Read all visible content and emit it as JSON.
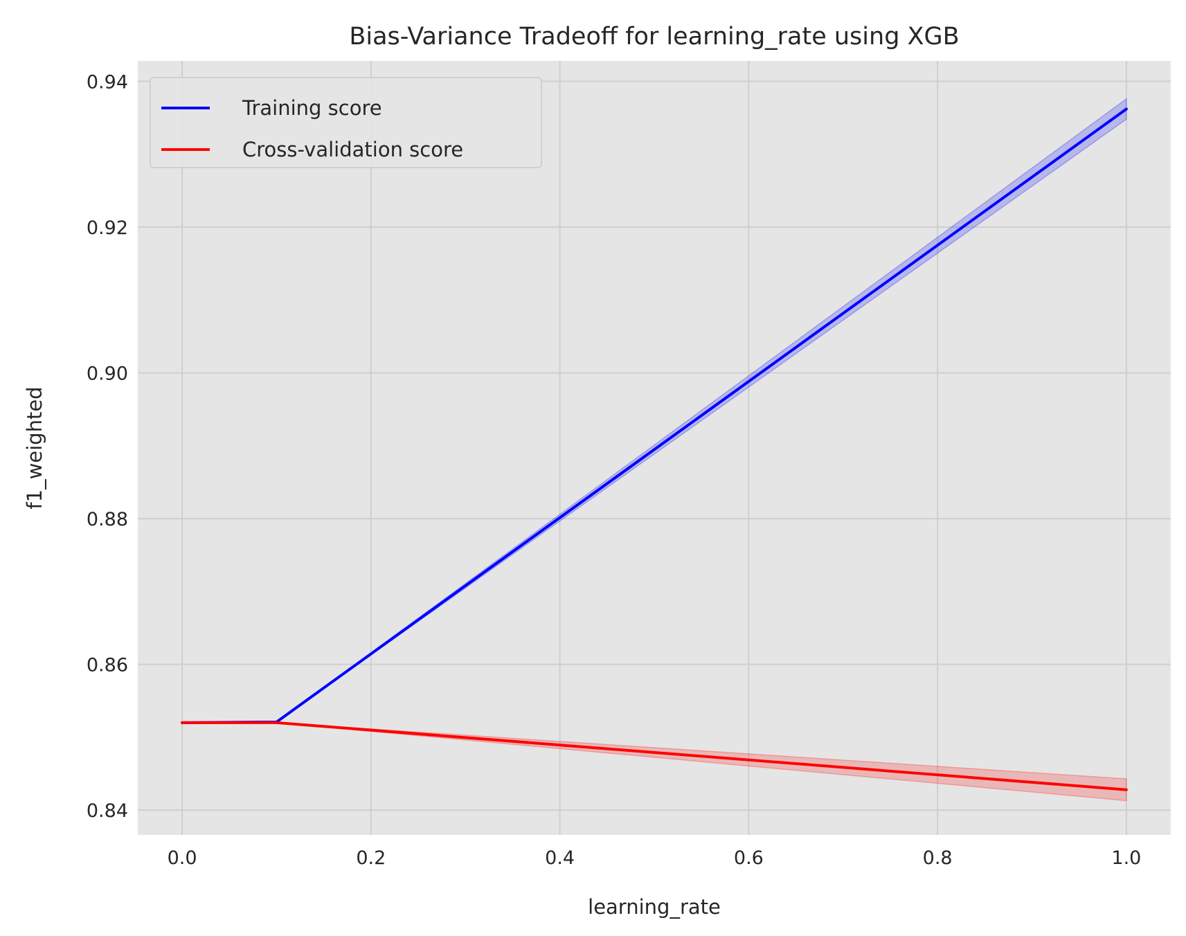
{
  "chart_data": {
    "type": "line",
    "title": "Bias-Variance Tradeoff for learning_rate using XGB",
    "xlabel": "learning_rate",
    "ylabel": "f1_weighted",
    "xlim": [
      -0.047,
      1.047
    ],
    "ylim": [
      0.8366,
      0.9428
    ],
    "xticks": [
      0.0,
      0.2,
      0.4,
      0.6,
      0.8,
      1.0
    ],
    "xtick_labels": [
      "0.0",
      "0.2",
      "0.4",
      "0.6",
      "0.8",
      "1.0"
    ],
    "yticks": [
      0.84,
      0.86,
      0.88,
      0.9,
      0.92,
      0.94
    ],
    "ytick_labels": [
      "0.84",
      "0.86",
      "0.88",
      "0.90",
      "0.92",
      "0.94"
    ],
    "grid": true,
    "legend_position": "top-left",
    "x": [
      0.0,
      0.1,
      1.0
    ],
    "series": [
      {
        "name": "Training score",
        "color": "#0000ff",
        "values": [
          0.852,
          0.8521,
          0.9362
        ],
        "band_lower": [
          0.852,
          0.8521,
          0.9348
        ],
        "band_upper": [
          0.852,
          0.8521,
          0.9376
        ]
      },
      {
        "name": "Cross-validation score",
        "color": "#ff0000",
        "values": [
          0.852,
          0.852,
          0.8428
        ],
        "band_lower": [
          0.852,
          0.852,
          0.8413
        ],
        "band_upper": [
          0.852,
          0.852,
          0.8443
        ]
      }
    ]
  },
  "colors": {
    "plot_background": "#e5e5e5",
    "grid": "#cfcfcf"
  }
}
